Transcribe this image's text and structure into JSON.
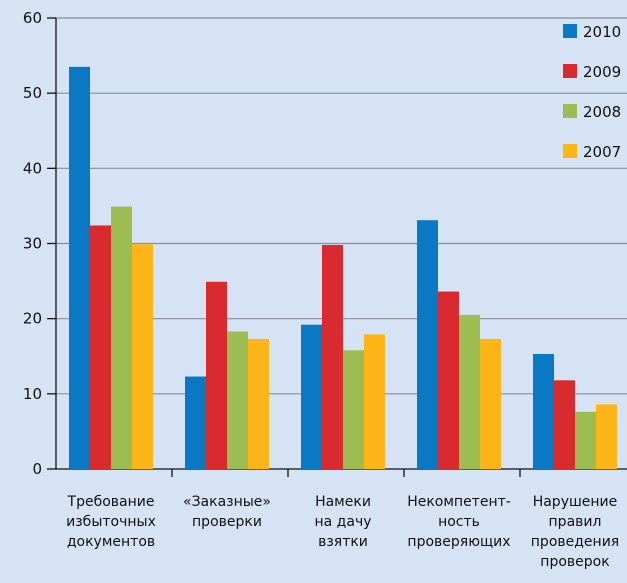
{
  "chart_data": {
    "type": "bar",
    "title": "",
    "xlabel": "",
    "ylabel": "",
    "ylim": [
      0,
      60
    ],
    "yticks": [
      0,
      10,
      20,
      30,
      40,
      50,
      60
    ],
    "grid": true,
    "legend_position": "top-right",
    "categories": [
      [
        "Требование",
        "избыточных",
        "документов"
      ],
      [
        "«Заказные»",
        "проверки"
      ],
      [
        "Намеки",
        "на дачу",
        "взятки"
      ],
      [
        "Некомпетент-",
        "ность",
        "проверяющих"
      ],
      [
        "Нарушение",
        "правил",
        "проведения",
        "проверок"
      ]
    ],
    "series": [
      {
        "name": "2010",
        "color": "#0a78c3",
        "values": [
          53.5,
          12.3,
          19.2,
          33.1,
          15.3
        ]
      },
      {
        "name": "2009",
        "color": "#d82a2f",
        "values": [
          32.4,
          24.9,
          29.8,
          23.6,
          11.8
        ]
      },
      {
        "name": "2008",
        "color": "#9dbd53",
        "values": [
          34.9,
          18.3,
          15.8,
          20.5,
          7.6
        ]
      },
      {
        "name": "2007",
        "color": "#fdb417",
        "values": [
          29.9,
          17.3,
          17.9,
          17.3,
          8.6
        ]
      }
    ]
  }
}
